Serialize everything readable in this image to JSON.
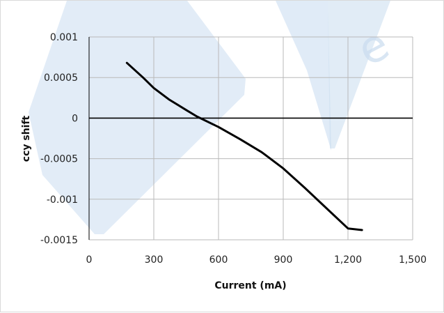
{
  "chart_data": {
    "type": "line",
    "title": "",
    "xlabel": "Current (mA)",
    "ylabel": "ccy shift",
    "xlim": [
      0,
      1500
    ],
    "ylim": [
      -0.0015,
      0.001
    ],
    "x_ticks": [
      0,
      300,
      600,
      900,
      1200,
      1500
    ],
    "x_tick_labels": [
      "0",
      "300",
      "600",
      "900",
      "1,200",
      "1,500"
    ],
    "y_ticks": [
      0.001,
      0.0005,
      0,
      -0.0005,
      -0.001,
      -0.0015
    ],
    "y_tick_labels": [
      "0.001",
      "0.0005",
      "0",
      "-0.0005",
      "-0.001",
      "-0.0015"
    ],
    "grid": true,
    "legend": "none",
    "series": [
      {
        "x": [
          175,
          250,
          300,
          370,
          450,
          500,
          600,
          700,
          800,
          900,
          1000,
          1100,
          1200,
          1265
        ],
        "y": [
          0.00068,
          0.0005,
          0.00037,
          0.00023,
          0.0001,
          2e-05,
          -0.00011,
          -0.00026,
          -0.00042,
          -0.00062,
          -0.00086,
          -0.00111,
          -0.00136,
          -0.00138
        ],
        "color": "#000000"
      }
    ],
    "watermark_colors": [
      "#dde9f6",
      "#c9dcef"
    ]
  }
}
